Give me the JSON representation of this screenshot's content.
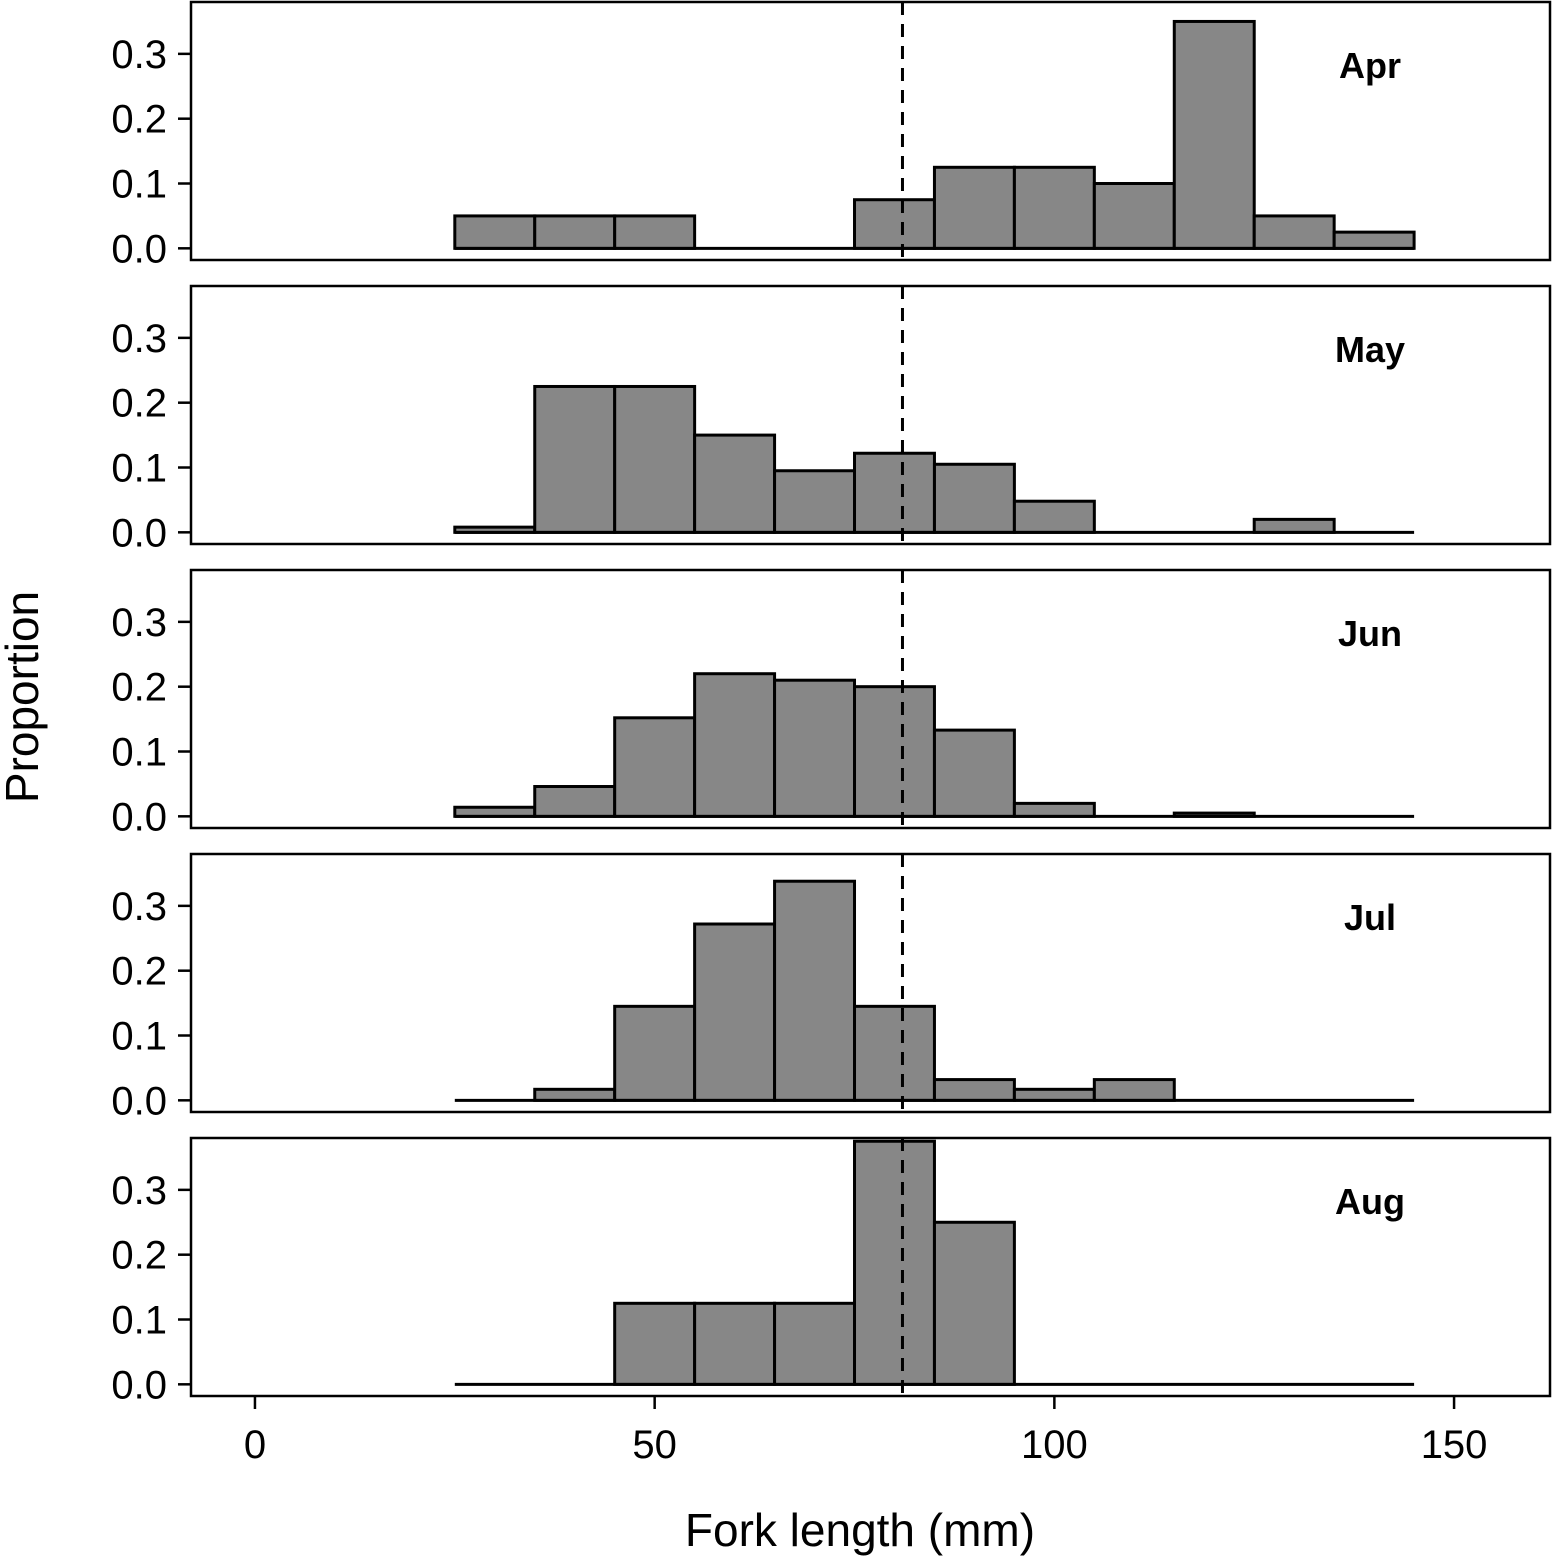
{
  "chart_data": {
    "type": "bar",
    "subtype": "histogram-faceted",
    "xlabel": "Fork length (mm)",
    "ylabel": "Proportion",
    "xlim": [
      -8,
      162
    ],
    "ylim": [
      -0.018,
      0.38
    ],
    "x_ticks": [
      0,
      50,
      100,
      150
    ],
    "x_tick_labels": [
      "0",
      "50",
      "100",
      "150"
    ],
    "y_ticks": [
      0.0,
      0.1,
      0.2,
      0.3
    ],
    "y_tick_labels": [
      "0.0",
      "0.1",
      "0.2",
      "0.3"
    ],
    "bin_edges": [
      25,
      35,
      45,
      55,
      65,
      75,
      85,
      95,
      105,
      115,
      125,
      135,
      145
    ],
    "bar_color": "#878787",
    "reference_line_x": 81,
    "grid": false,
    "panel_label_position": "top-right",
    "panels": [
      {
        "name": "Apr",
        "values": [
          0.05,
          0.05,
          0.05,
          0.0,
          0.0,
          0.075,
          0.125,
          0.125,
          0.1,
          0.35,
          0.05,
          0.025
        ]
      },
      {
        "name": "May",
        "values": [
          0.008,
          0.225,
          0.225,
          0.15,
          0.095,
          0.122,
          0.105,
          0.048,
          0.0,
          0.0,
          0.02,
          0.0
        ]
      },
      {
        "name": "Jun",
        "values": [
          0.014,
          0.046,
          0.152,
          0.22,
          0.21,
          0.2,
          0.133,
          0.02,
          0.0,
          0.005,
          0.0,
          0.0
        ]
      },
      {
        "name": "Jul",
        "values": [
          0.0,
          0.017,
          0.145,
          0.272,
          0.338,
          0.145,
          0.032,
          0.017,
          0.032,
          0.0,
          0.0,
          0.0
        ]
      },
      {
        "name": "Aug",
        "values": [
          0.0,
          0.0,
          0.125,
          0.125,
          0.125,
          0.375,
          0.25,
          0.0,
          0.0,
          0.0,
          0.0,
          0.0
        ]
      }
    ]
  }
}
